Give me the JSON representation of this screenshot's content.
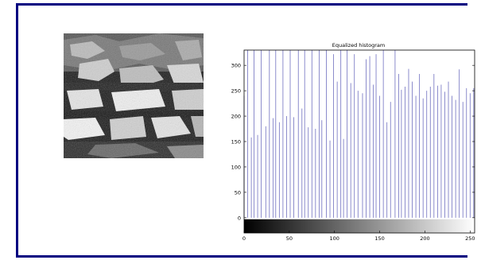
{
  "figure": {
    "image_alt": "grayscale stone wall photo"
  },
  "chart_data": {
    "type": "bar",
    "title": "Equalized histogram",
    "xlabel": "",
    "ylabel": "",
    "xlim": [
      0,
      255
    ],
    "ylim": [
      -30,
      330
    ],
    "x_ticks": [
      0,
      50,
      100,
      150,
      200,
      250
    ],
    "y_ticks": [
      0,
      50,
      100,
      150,
      200,
      250,
      300
    ],
    "grid": false,
    "colorbar": "grayscale gradient from black to white below x-axis",
    "bar_color": "#7070c0",
    "series": [
      {
        "x": [
          0,
          4,
          8,
          11,
          15,
          19,
          24,
          28,
          32,
          35,
          39,
          43,
          47,
          51,
          55,
          60,
          64,
          67,
          71,
          75,
          79,
          83,
          86,
          91,
          95,
          99,
          103,
          107,
          110,
          114,
          118,
          122,
          126,
          131,
          135,
          139,
          143,
          146,
          150,
          154,
          158,
          162,
          167,
          171,
          174,
          178,
          182,
          186,
          190,
          194,
          198,
          202,
          206,
          210,
          214,
          218,
          222,
          226,
          230,
          234,
          238,
          242,
          246,
          250,
          254
        ],
        "values": [
          240,
          330,
          158,
          330,
          163,
          330,
          180,
          330,
          196,
          330,
          188,
          330,
          200,
          330,
          198,
          330,
          215,
          330,
          178,
          330,
          175,
          330,
          192,
          330,
          152,
          322,
          268,
          330,
          155,
          330,
          265,
          322,
          250,
          245,
          312,
          318,
          262,
          322,
          240,
          330,
          188,
          228,
          330,
          283,
          252,
          258,
          293,
          268,
          240,
          283,
          235,
          250,
          258,
          283,
          260,
          262,
          248,
          268,
          240,
          232,
          292,
          228,
          255,
          245,
          255
        ]
      }
    ]
  }
}
